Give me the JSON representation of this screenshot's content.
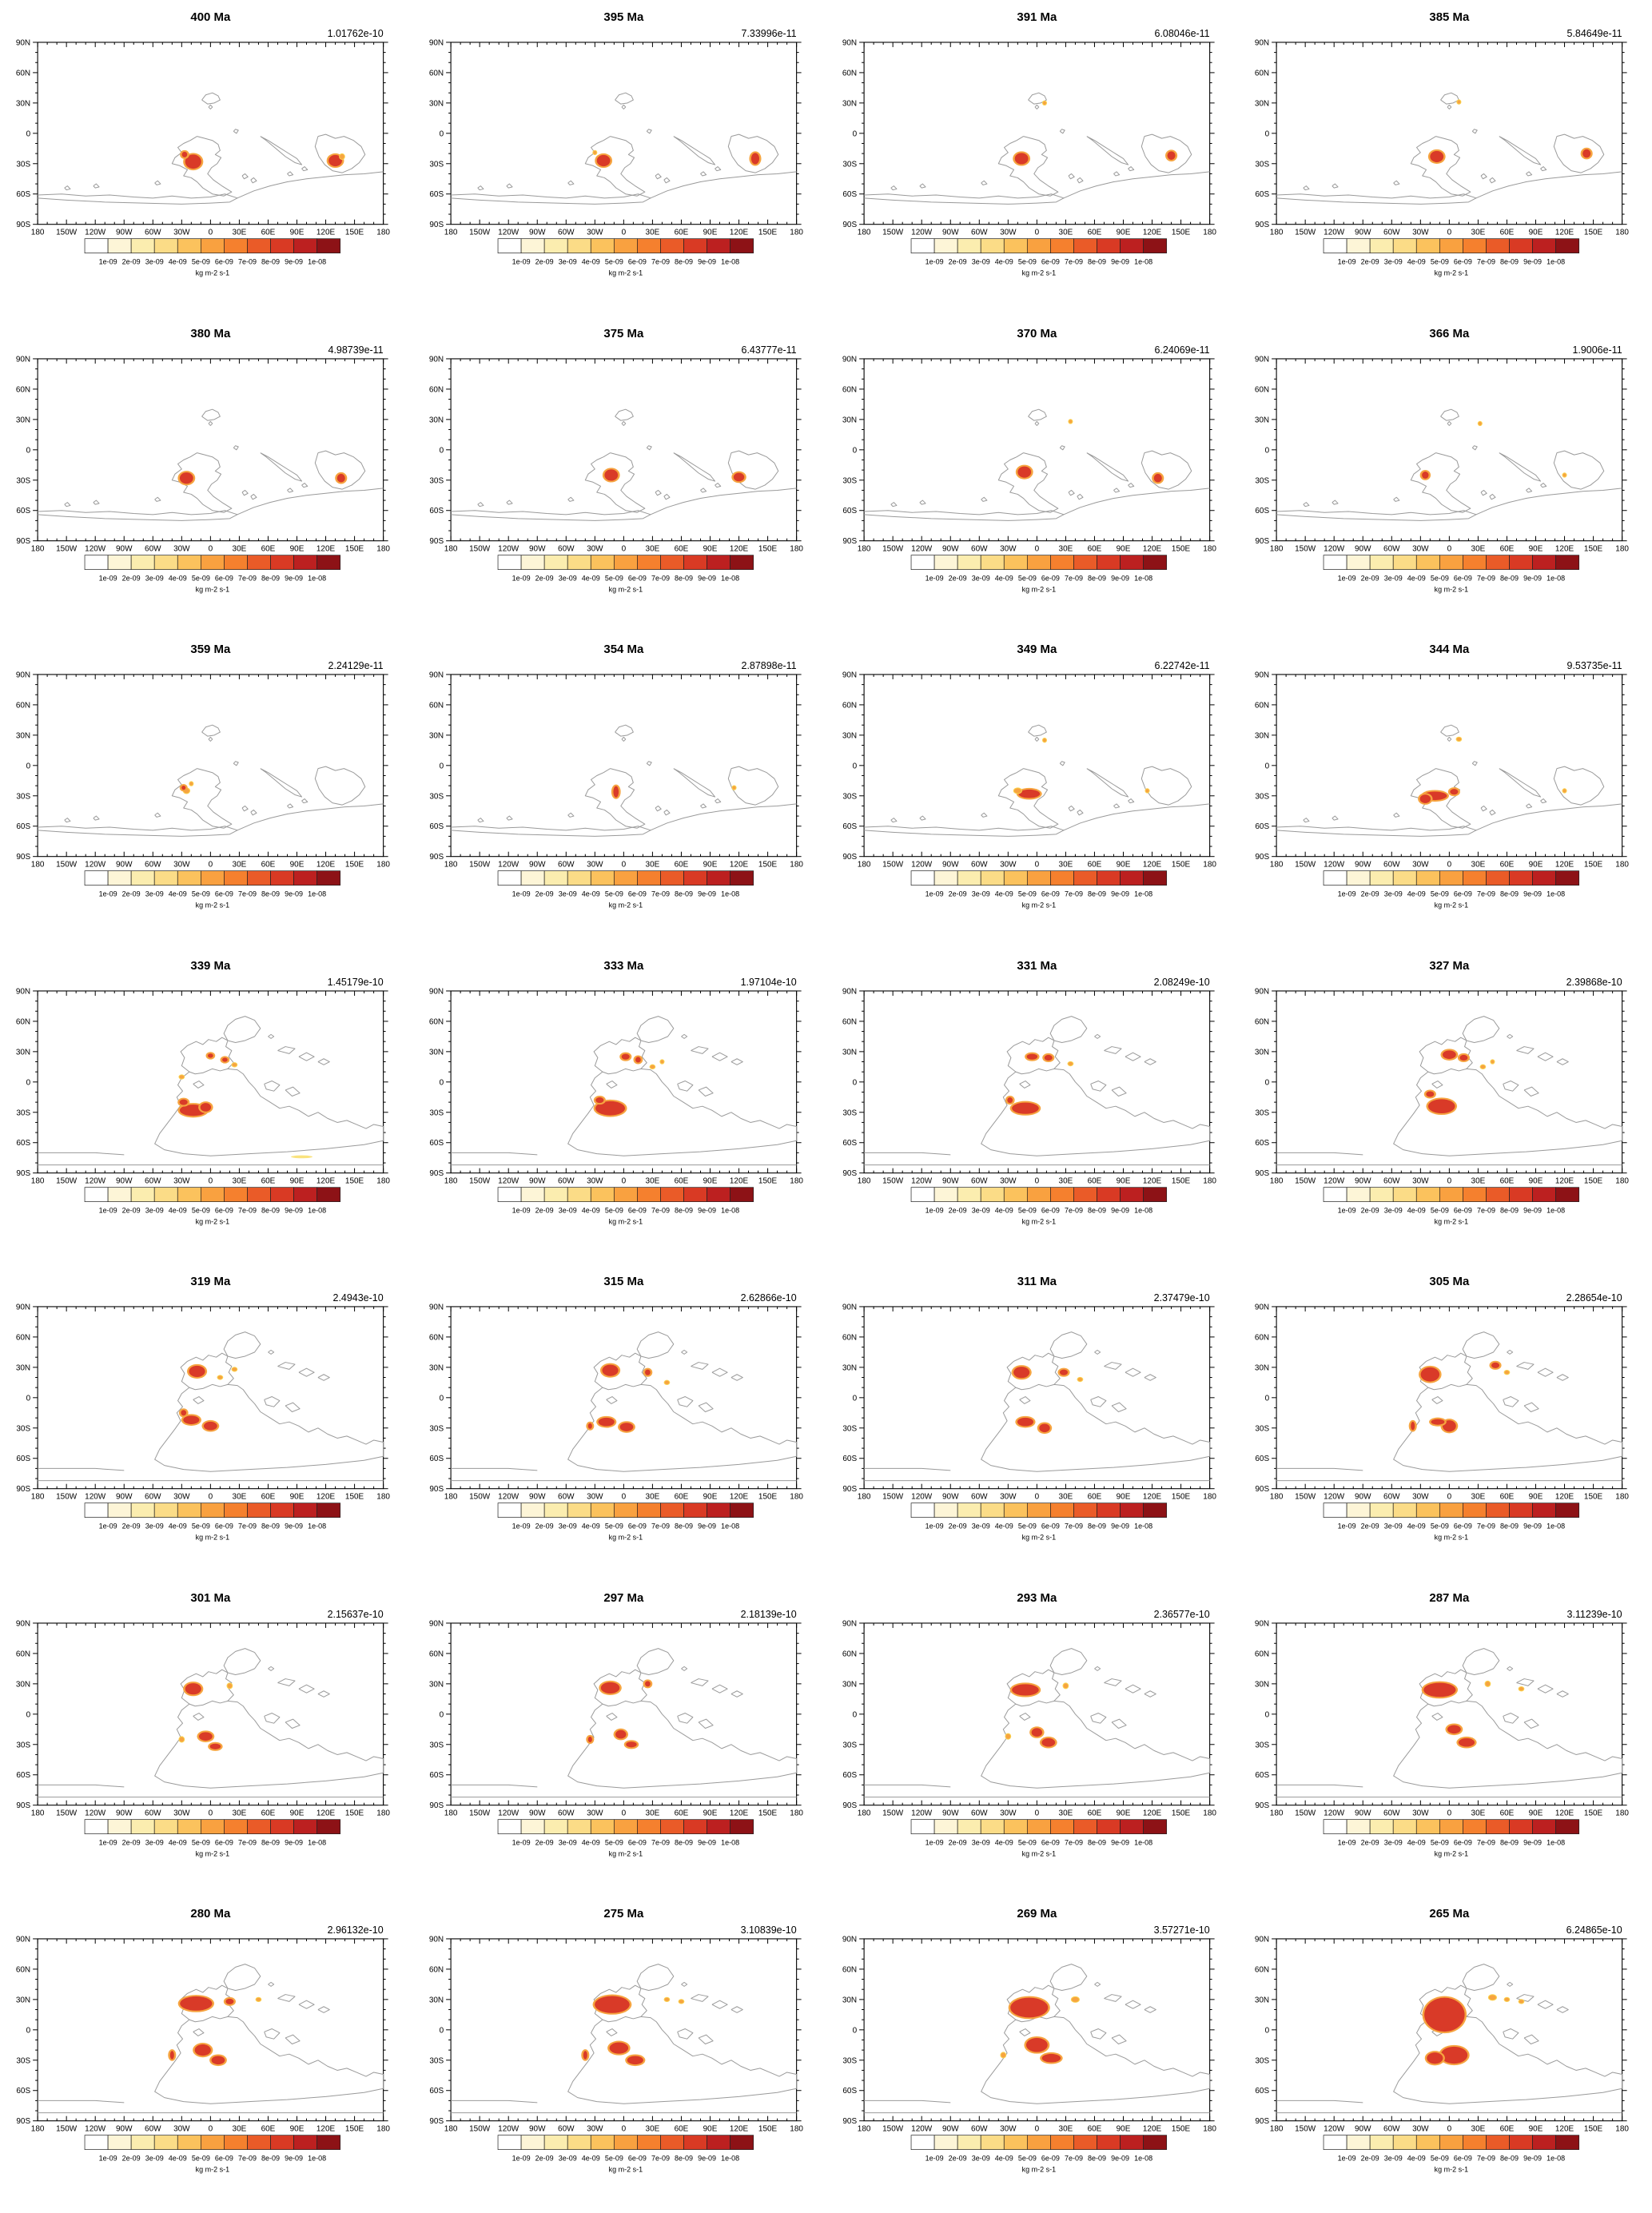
{
  "figure": {
    "rows": 7,
    "cols": 4,
    "description": "Grid of 28 paleogeographic map panels of a flux field through geological time"
  },
  "axis": {
    "lat_labels": [
      "90N",
      "60N",
      "30N",
      "0",
      "30S",
      "60S",
      "90S"
    ],
    "lon_labels": [
      "180",
      "150W",
      "120W",
      "90W",
      "60W",
      "30W",
      "0",
      "30E",
      "60E",
      "90E",
      "120E",
      "150E",
      "180"
    ]
  },
  "colorbar": {
    "labels": [
      "1e-09",
      "2e-09",
      "3e-09",
      "4e-09",
      "5e-09",
      "6e-09",
      "7e-09",
      "8e-09",
      "9e-09",
      "1e-08"
    ],
    "unit": "kg m-2 s-1",
    "colors": [
      "#ffffff",
      "#fdf5d7",
      "#fbedaf",
      "#fbdc87",
      "#fbc25d",
      "#f9a140",
      "#f5802e",
      "#ea5b28",
      "#d93a24",
      "#bc2020",
      "#8d1216"
    ]
  },
  "spot_colors": {
    "r": "#d93a28",
    "o": "#f6a440",
    "y": "#f9e27d",
    "halo": "#f6a440"
  },
  "panels": [
    {
      "title": "400 Ma",
      "value": "1.01762e-10",
      "coast": "early",
      "spots": [
        [
          -18,
          -28,
          6,
          5,
          "r"
        ],
        [
          -27,
          -21,
          2,
          2,
          "r"
        ],
        [
          130,
          -27,
          5,
          4,
          "r"
        ],
        [
          137,
          -23,
          2,
          2,
          "o"
        ]
      ]
    },
    {
      "title": "395 Ma",
      "value": "7.33996e-11",
      "coast": "early",
      "spots": [
        [
          -21,
          -27,
          5,
          4,
          "r"
        ],
        [
          137,
          -25,
          3,
          4,
          "r"
        ],
        [
          -30,
          -19,
          1.5,
          1.5,
          "o"
        ]
      ]
    },
    {
      "title": "391 Ma",
      "value": "6.08046e-11",
      "coast": "early",
      "spots": [
        [
          -16,
          -25,
          5,
          4,
          "r"
        ],
        [
          140,
          -22,
          3,
          3,
          "r"
        ],
        [
          8,
          30,
          1.5,
          1.5,
          "o"
        ]
      ]
    },
    {
      "title": "385 Ma",
      "value": "5.84649e-11",
      "coast": "early",
      "spots": [
        [
          -13,
          -23,
          5,
          4,
          "r"
        ],
        [
          143,
          -20,
          3,
          3,
          "r"
        ],
        [
          10,
          31,
          1.5,
          1.5,
          "o"
        ]
      ]
    },
    {
      "title": "380 Ma",
      "value": "4.98739e-11",
      "coast": "early",
      "spots": [
        [
          -25,
          -28,
          5,
          4,
          "r"
        ],
        [
          136,
          -28,
          3,
          3,
          "r"
        ]
      ]
    },
    {
      "title": "375 Ma",
      "value": "6.43777e-11",
      "coast": "early",
      "spots": [
        [
          -13,
          -25,
          5,
          4,
          "r"
        ],
        [
          120,
          -27,
          4,
          3,
          "r"
        ]
      ]
    },
    {
      "title": "370 Ma",
      "value": "6.24069e-11",
      "coast": "early",
      "spots": [
        [
          -13,
          -22,
          5,
          4,
          "r"
        ],
        [
          126,
          -28,
          3,
          3,
          "r"
        ],
        [
          35,
          28,
          1.5,
          1.5,
          "o"
        ]
      ]
    },
    {
      "title": "366 Ma",
      "value": "1.9006e-11",
      "coast": "early",
      "spots": [
        [
          -25,
          -25,
          2.5,
          2.5,
          "r"
        ],
        [
          32,
          26,
          1.5,
          1.5,
          "o"
        ],
        [
          120,
          -25,
          1.5,
          1.5,
          "o"
        ]
      ]
    },
    {
      "title": "359 Ma",
      "value": "2.24129e-11",
      "coast": "early",
      "spots": [
        [
          -25,
          -25,
          2.5,
          2,
          "o"
        ],
        [
          -20,
          -18,
          1.5,
          1.5,
          "o"
        ],
        [
          -28,
          -22,
          1.5,
          1.5,
          "r"
        ]
      ]
    },
    {
      "title": "354 Ma",
      "value": "2.87898e-11",
      "coast": "early",
      "spots": [
        [
          -8,
          -26,
          2,
          4,
          "r"
        ],
        [
          115,
          -22,
          1.5,
          1.5,
          "o"
        ]
      ]
    },
    {
      "title": "349 Ma",
      "value": "6.22742e-11",
      "coast": "early",
      "spots": [
        [
          -8,
          -28,
          8,
          3,
          "r"
        ],
        [
          -20,
          -25,
          3,
          2,
          "o"
        ],
        [
          115,
          -25,
          1.5,
          1.5,
          "o"
        ],
        [
          8,
          25,
          1.5,
          1.5,
          "o"
        ]
      ]
    },
    {
      "title": "344 Ma",
      "value": "9.53735e-11",
      "coast": "early",
      "spots": [
        [
          -15,
          -30,
          9,
          3,
          "r"
        ],
        [
          -25,
          -33,
          4,
          3,
          "r"
        ],
        [
          5,
          -26,
          3,
          2,
          "r"
        ],
        [
          10,
          26,
          2,
          1.5,
          "o"
        ],
        [
          120,
          -25,
          1.5,
          1.5,
          "o"
        ]
      ]
    },
    {
      "title": "339 Ma",
      "value": "1.45179e-10",
      "coast": "late",
      "spots": [
        [
          -18,
          -28,
          10,
          4,
          "r"
        ],
        [
          -28,
          -20,
          3,
          2,
          "r"
        ],
        [
          -5,
          -25,
          4,
          3,
          "r"
        ],
        [
          -30,
          5,
          2,
          1.5,
          "o"
        ],
        [
          0,
          26,
          2,
          1.5,
          "r"
        ],
        [
          15,
          22,
          2,
          1.5,
          "r"
        ],
        [
          25,
          17,
          2,
          1.5,
          "o"
        ],
        [
          95,
          -74,
          8,
          1,
          "y"
        ]
      ]
    },
    {
      "title": "333 Ma",
      "value": "1.97104e-10",
      "coast": "late",
      "spots": [
        [
          -14,
          -26,
          11,
          5,
          "r"
        ],
        [
          -25,
          -18,
          3,
          2,
          "r"
        ],
        [
          2,
          25,
          3,
          2,
          "r"
        ],
        [
          15,
          22,
          2,
          2,
          "r"
        ],
        [
          30,
          15,
          2,
          1.5,
          "o"
        ],
        [
          40,
          20,
          1.5,
          1.5,
          "o"
        ]
      ]
    },
    {
      "title": "331 Ma",
      "value": "2.08249e-10",
      "coast": "late",
      "spots": [
        [
          -12,
          -26,
          10,
          4,
          "r"
        ],
        [
          -5,
          25,
          4,
          2,
          "r"
        ],
        [
          12,
          24,
          3,
          2,
          "r"
        ],
        [
          -28,
          -18,
          2,
          2,
          "r"
        ],
        [
          35,
          18,
          2,
          1.5,
          "o"
        ]
      ]
    },
    {
      "title": "327 Ma",
      "value": "2.39868e-10",
      "coast": "late",
      "spots": [
        [
          -8,
          -24,
          10,
          5,
          "r"
        ],
        [
          0,
          27,
          5,
          3,
          "r"
        ],
        [
          15,
          24,
          3,
          2,
          "r"
        ],
        [
          -20,
          -12,
          3,
          2,
          "r"
        ],
        [
          35,
          15,
          2,
          1.5,
          "o"
        ],
        [
          45,
          20,
          1.5,
          1.5,
          "o"
        ]
      ]
    },
    {
      "title": "319 Ma",
      "value": "2.4943e-10",
      "coast": "late",
      "spots": [
        [
          -14,
          26,
          6,
          4,
          "r"
        ],
        [
          -20,
          -22,
          6,
          3,
          "r"
        ],
        [
          0,
          -28,
          5,
          3,
          "r"
        ],
        [
          -28,
          -15,
          2,
          2,
          "r"
        ],
        [
          10,
          20,
          2,
          1.5,
          "o"
        ],
        [
          25,
          28,
          2,
          1.5,
          "o"
        ]
      ]
    },
    {
      "title": "315 Ma",
      "value": "2.62866e-10",
      "coast": "late",
      "spots": [
        [
          -14,
          27,
          6,
          4,
          "r"
        ],
        [
          -18,
          -24,
          6,
          3,
          "r"
        ],
        [
          3,
          -29,
          5,
          3,
          "r"
        ],
        [
          25,
          25,
          2,
          2,
          "r"
        ],
        [
          45,
          15,
          2,
          1.5,
          "o"
        ],
        [
          -35,
          -28,
          1.5,
          2,
          "r"
        ]
      ]
    },
    {
      "title": "311 Ma",
      "value": "2.37479e-10",
      "coast": "late",
      "spots": [
        [
          -16,
          25,
          6,
          4,
          "r"
        ],
        [
          -12,
          -24,
          6,
          3,
          "r"
        ],
        [
          8,
          -30,
          4,
          3,
          "r"
        ],
        [
          28,
          25,
          3,
          2,
          "r"
        ],
        [
          45,
          18,
          2,
          1.5,
          "o"
        ]
      ]
    },
    {
      "title": "305 Ma",
      "value": "2.28654e-10",
      "coast": "late",
      "spots": [
        [
          -20,
          23,
          7,
          5,
          "r"
        ],
        [
          0,
          -28,
          5,
          4,
          "r"
        ],
        [
          -12,
          -24,
          5,
          2,
          "r"
        ],
        [
          -38,
          -28,
          1.5,
          3,
          "r"
        ],
        [
          48,
          32,
          3,
          2,
          "r"
        ],
        [
          60,
          25,
          2,
          1.5,
          "o"
        ]
      ]
    },
    {
      "title": "301 Ma",
      "value": "2.15637e-10",
      "coast": "late",
      "spots": [
        [
          -18,
          25,
          6,
          4,
          "r"
        ],
        [
          -5,
          -22,
          5,
          3,
          "r"
        ],
        [
          5,
          -32,
          4,
          2,
          "r"
        ],
        [
          -30,
          -25,
          2,
          2,
          "o"
        ],
        [
          20,
          28,
          2,
          2,
          "o"
        ]
      ]
    },
    {
      "title": "297 Ma",
      "value": "2.18139e-10",
      "coast": "late",
      "spots": [
        [
          -14,
          26,
          7,
          4,
          "r"
        ],
        [
          -3,
          -20,
          4,
          3,
          "r"
        ],
        [
          8,
          -30,
          4,
          2,
          "r"
        ],
        [
          25,
          30,
          2,
          2,
          "r"
        ],
        [
          -35,
          -25,
          1.5,
          2,
          "r"
        ]
      ]
    },
    {
      "title": "293 Ma",
      "value": "2.36577e-10",
      "coast": "late",
      "spots": [
        [
          -12,
          24,
          10,
          4,
          "r"
        ],
        [
          0,
          -18,
          4,
          3,
          "r"
        ],
        [
          12,
          -28,
          5,
          3,
          "r"
        ],
        [
          30,
          28,
          2,
          2,
          "o"
        ],
        [
          -30,
          -22,
          2,
          2,
          "o"
        ]
      ]
    },
    {
      "title": "287 Ma",
      "value": "3.11239e-10",
      "coast": "late",
      "spots": [
        [
          -10,
          24,
          12,
          5,
          "r"
        ],
        [
          5,
          -15,
          5,
          3,
          "r"
        ],
        [
          18,
          -28,
          6,
          3,
          "r"
        ],
        [
          40,
          30,
          2,
          2,
          "o"
        ],
        [
          75,
          25,
          2,
          1.5,
          "o"
        ]
      ]
    },
    {
      "title": "280 Ma",
      "value": "2.96132e-10",
      "coast": "late",
      "spots": [
        [
          -15,
          26,
          12,
          5,
          "r"
        ],
        [
          -8,
          -20,
          6,
          4,
          "r"
        ],
        [
          8,
          -30,
          5,
          3,
          "r"
        ],
        [
          -40,
          -25,
          1.5,
          3,
          "r"
        ],
        [
          20,
          28,
          3,
          2,
          "r"
        ],
        [
          50,
          30,
          2,
          1.5,
          "o"
        ]
      ]
    },
    {
      "title": "275 Ma",
      "value": "3.10839e-10",
      "coast": "late",
      "spots": [
        [
          -12,
          25,
          13,
          6,
          "r"
        ],
        [
          -5,
          -18,
          7,
          4,
          "r"
        ],
        [
          12,
          -30,
          6,
          3,
          "r"
        ],
        [
          -40,
          -25,
          1.5,
          3,
          "r"
        ],
        [
          45,
          30,
          2,
          1.5,
          "o"
        ],
        [
          60,
          28,
          2,
          1.5,
          "o"
        ]
      ]
    },
    {
      "title": "269 Ma",
      "value": "3.57271e-10",
      "coast": "late",
      "spots": [
        [
          -8,
          22,
          14,
          7,
          "r"
        ],
        [
          0,
          -15,
          8,
          5,
          "r"
        ],
        [
          15,
          -28,
          7,
          3,
          "r"
        ],
        [
          40,
          30,
          3,
          2,
          "o"
        ],
        [
          -35,
          -25,
          2,
          2,
          "o"
        ]
      ]
    },
    {
      "title": "265 Ma",
      "value": "6.24865e-10",
      "coast": "late",
      "spots": [
        [
          -5,
          15,
          15,
          12,
          "r"
        ],
        [
          5,
          -25,
          10,
          6,
          "r"
        ],
        [
          -15,
          -28,
          6,
          4,
          "r"
        ],
        [
          45,
          32,
          3,
          2,
          "o"
        ],
        [
          60,
          30,
          2,
          1.5,
          "o"
        ],
        [
          75,
          28,
          2,
          1.5,
          "o"
        ]
      ]
    }
  ]
}
